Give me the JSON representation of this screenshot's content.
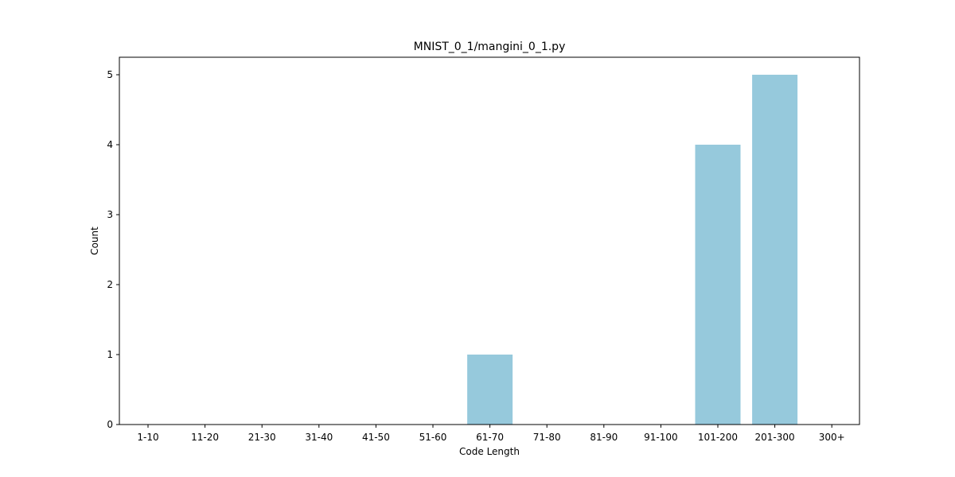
{
  "chart_data": {
    "type": "bar",
    "title": "MNIST_0_1/mangini_0_1.py",
    "xlabel": "Code Length",
    "ylabel": "Count",
    "categories": [
      "1-10",
      "11-20",
      "21-30",
      "31-40",
      "41-50",
      "51-60",
      "61-70",
      "71-80",
      "81-90",
      "91-100",
      "101-200",
      "201-300",
      "300+"
    ],
    "values": [
      0,
      0,
      0,
      0,
      0,
      0,
      1,
      0,
      0,
      0,
      4,
      5,
      0
    ],
    "ylim": [
      0,
      5.25
    ],
    "yticks": [
      "0",
      "1",
      "2",
      "3",
      "4",
      "5"
    ],
    "grid": false,
    "bar_color": "#96c9dc"
  }
}
